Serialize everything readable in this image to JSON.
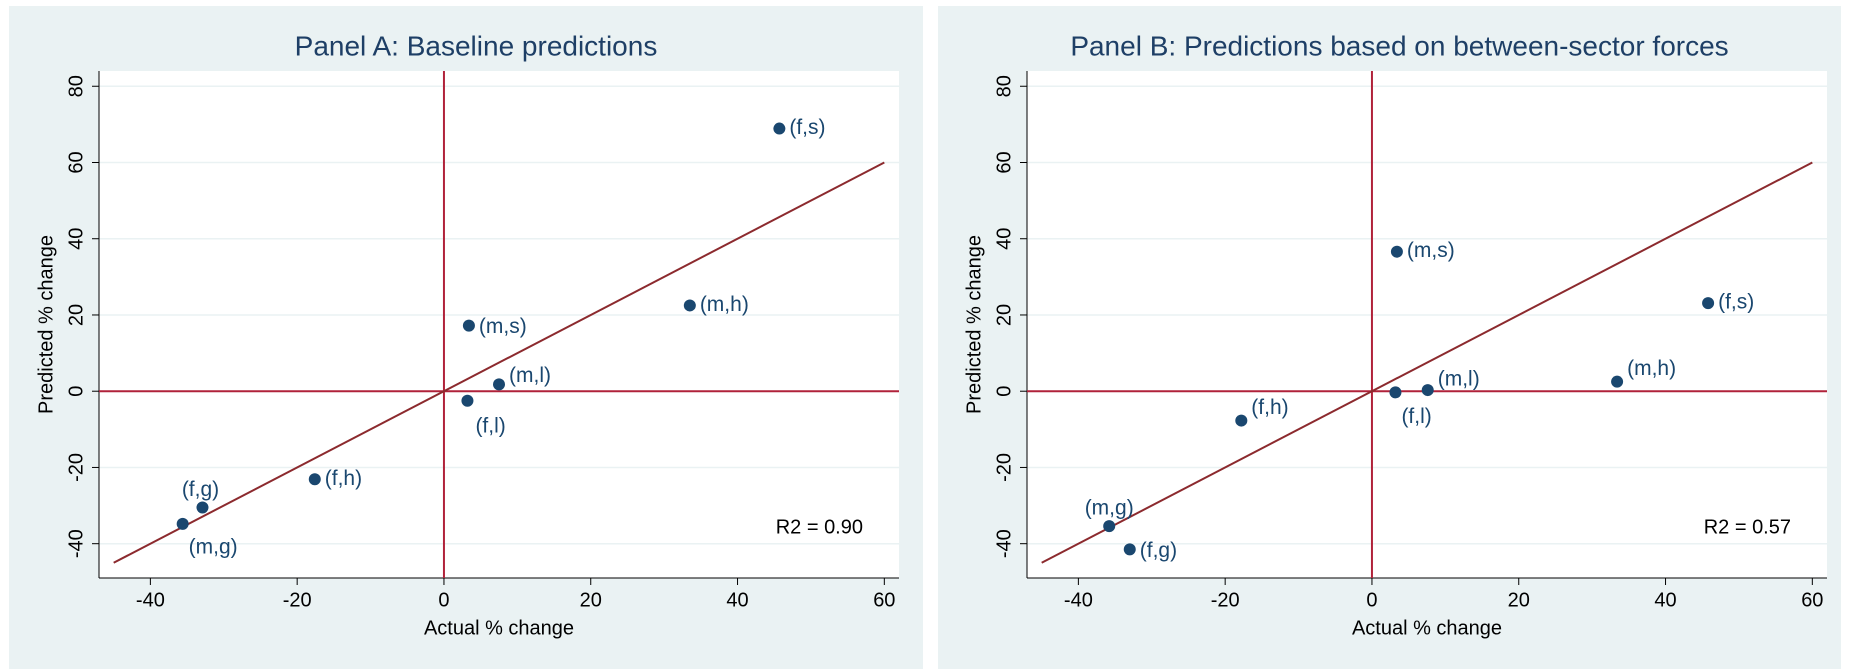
{
  "chart_data": [
    {
      "type": "scatter",
      "title": "Panel A: Baseline predictions",
      "xlabel": "Actual % change",
      "ylabel": "Predicted % change",
      "point_labels": [
        "(f,s)",
        "(m,h)",
        "(m,s)",
        "(m,l)",
        "(f,l)",
        "(f,h)",
        "(f,g)",
        "(m,g)"
      ],
      "x": [
        45.7,
        33.5,
        3.4,
        7.5,
        3.2,
        -17.6,
        -32.9,
        -35.6
      ],
      "values": [
        68.9,
        22.5,
        17.2,
        1.8,
        -2.5,
        -23.1,
        -30.5,
        -34.8
      ],
      "color": "#1a476f",
      "reference_lines": {
        "x": 0,
        "y": 0
      },
      "reference_color": "#b0223a",
      "diagonal": [
        -45,
        60
      ],
      "diagonal_color": "#8c2a2e",
      "annotation": "R2 = 0.90",
      "xlim": [
        -47,
        62
      ],
      "ylim": [
        -49,
        84
      ],
      "xticks": [
        -40,
        -20,
        0,
        20,
        40,
        60
      ],
      "yticks": [
        -40,
        -20,
        0,
        20,
        40,
        60,
        80
      ],
      "grid": true
    },
    {
      "type": "scatter",
      "title": "Panel B: Predictions based on between-sector forces",
      "xlabel": "Actual % change",
      "ylabel": "Predicted % change",
      "point_labels": [
        "(f,s)",
        "(m,h)",
        "(m,s)",
        "(m,l)",
        "(f,l)",
        "(f,h)",
        "(f,g)",
        "(m,g)"
      ],
      "x": [
        45.8,
        33.4,
        3.4,
        7.6,
        3.2,
        -17.8,
        -33.0,
        -35.8
      ],
      "values": [
        23.1,
        2.5,
        36.6,
        0.3,
        -0.3,
        -7.7,
        -41.5,
        -35.4
      ],
      "color": "#1a476f",
      "reference_lines": {
        "x": 0,
        "y": 0
      },
      "reference_color": "#b0223a",
      "diagonal": [
        -45,
        60
      ],
      "diagonal_color": "#8c2a2e",
      "annotation": "R2 = 0.57",
      "xlim": [
        -47,
        62
      ],
      "ylim": [
        -49,
        84
      ],
      "xticks": [
        -40,
        -20,
        0,
        20,
        40,
        60
      ],
      "yticks": [
        -40,
        -20,
        0,
        20,
        40,
        60,
        80
      ],
      "grid": true
    }
  ]
}
